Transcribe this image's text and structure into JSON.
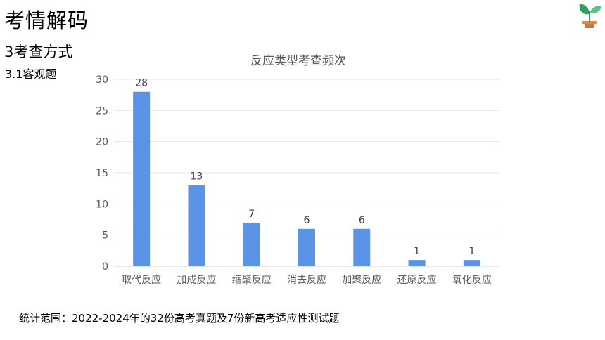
{
  "header": {
    "title": "考情解码",
    "section": "3考查方式",
    "subsection": "3.1客观题",
    "logo_icon": "sprout-logo-icon"
  },
  "footnote": "统计范围：2022-2024年的32份高考真题及7份新高考适应性测试题",
  "colors": {
    "bar": "#5B93E6",
    "grid": "#e6e6e6",
    "axis": "#d0d0d0"
  },
  "chart_data": {
    "type": "bar",
    "title": "反应类型考查频次",
    "categories": [
      "取代反应",
      "加成反应",
      "缩聚反应",
      "消去反应",
      "加聚反应",
      "还原反应",
      "氧化反应"
    ],
    "values": [
      28,
      13,
      7,
      6,
      6,
      1,
      1
    ],
    "xlabel": "",
    "ylabel": "",
    "ylim": [
      0,
      30
    ],
    "yticks": [
      0,
      5,
      10,
      15,
      20,
      25,
      30
    ],
    "grid": true,
    "legend": "none",
    "data_labels": true
  }
}
